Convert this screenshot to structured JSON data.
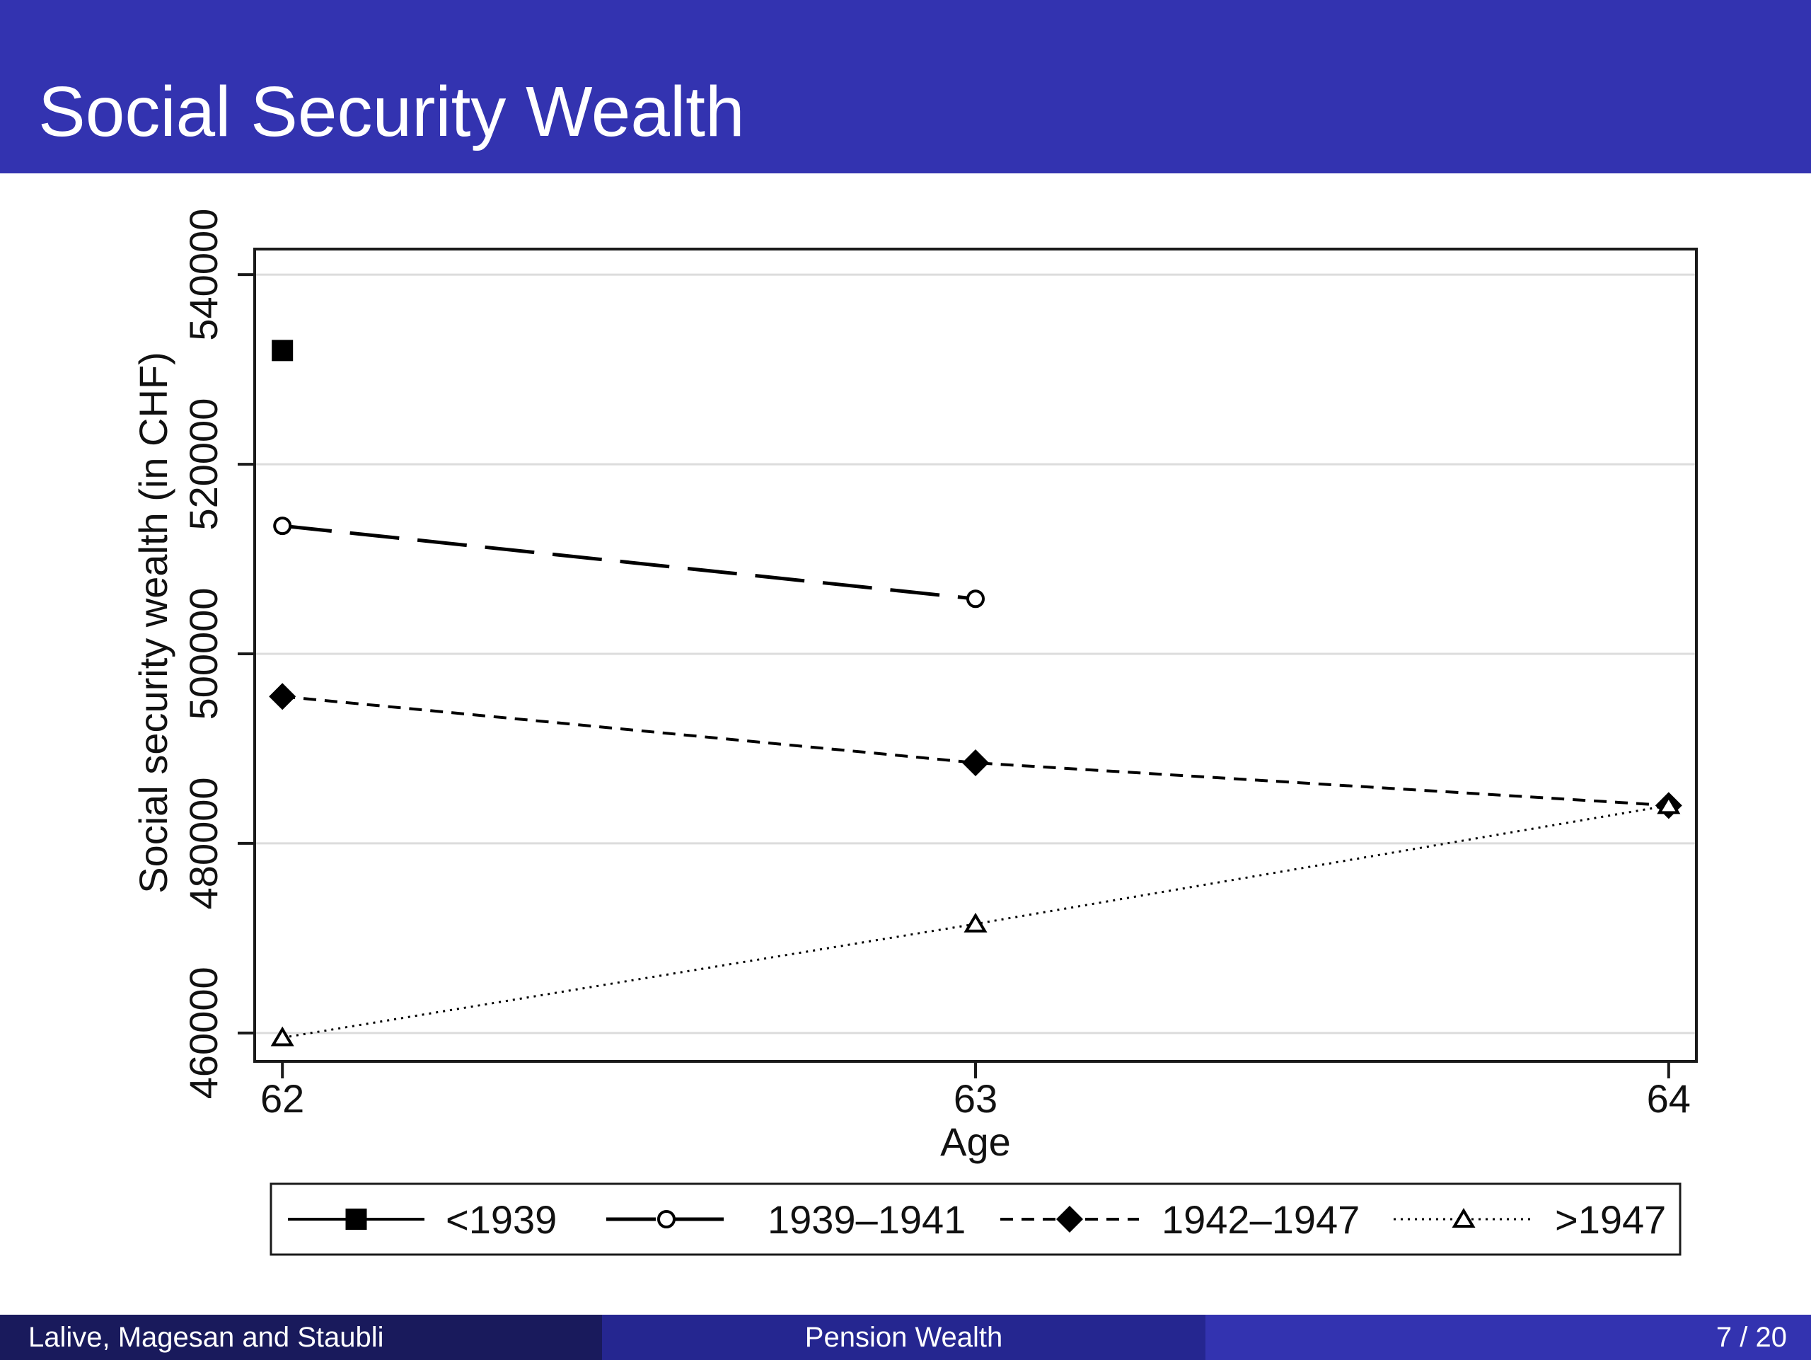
{
  "slide": {
    "title": "Social Security Wealth",
    "footer": {
      "authors": "Lalive, Magesan and Staubli",
      "section": "Pension Wealth",
      "page": "7 / 20"
    },
    "colors": {
      "header": "#3333b0",
      "footer_left": "#191a5c",
      "footer_mid": "#252690",
      "footer_right": "#3333b0"
    }
  },
  "chart_data": {
    "type": "line",
    "xlabel": "Age",
    "ylabel": "Social security wealth (in CHF)",
    "x_ticks": [
      62,
      63,
      64
    ],
    "y_ticks": [
      460000,
      480000,
      500000,
      520000,
      540000
    ],
    "xlim": [
      61.96,
      64.04
    ],
    "ylim": [
      457000,
      542700
    ],
    "grid": true,
    "legend_position": "bottom",
    "series": [
      {
        "name": "<1939",
        "style": "solid",
        "marker": "square-filled",
        "points": [
          [
            62,
            532000
          ]
        ]
      },
      {
        "name": "1939–1941",
        "style": "longdash",
        "marker": "circle-open",
        "points": [
          [
            62,
            513500
          ],
          [
            63,
            505800
          ]
        ]
      },
      {
        "name": "1942–1947",
        "style": "shortdash",
        "marker": "diamond-filled",
        "points": [
          [
            62,
            495500
          ],
          [
            63,
            488500
          ],
          [
            64,
            484000
          ]
        ]
      },
      {
        "name": ">1947",
        "style": "dotted",
        "marker": "triangle-open",
        "points": [
          [
            62,
            459500
          ],
          [
            63,
            471500
          ],
          [
            64,
            484000
          ]
        ]
      }
    ]
  }
}
